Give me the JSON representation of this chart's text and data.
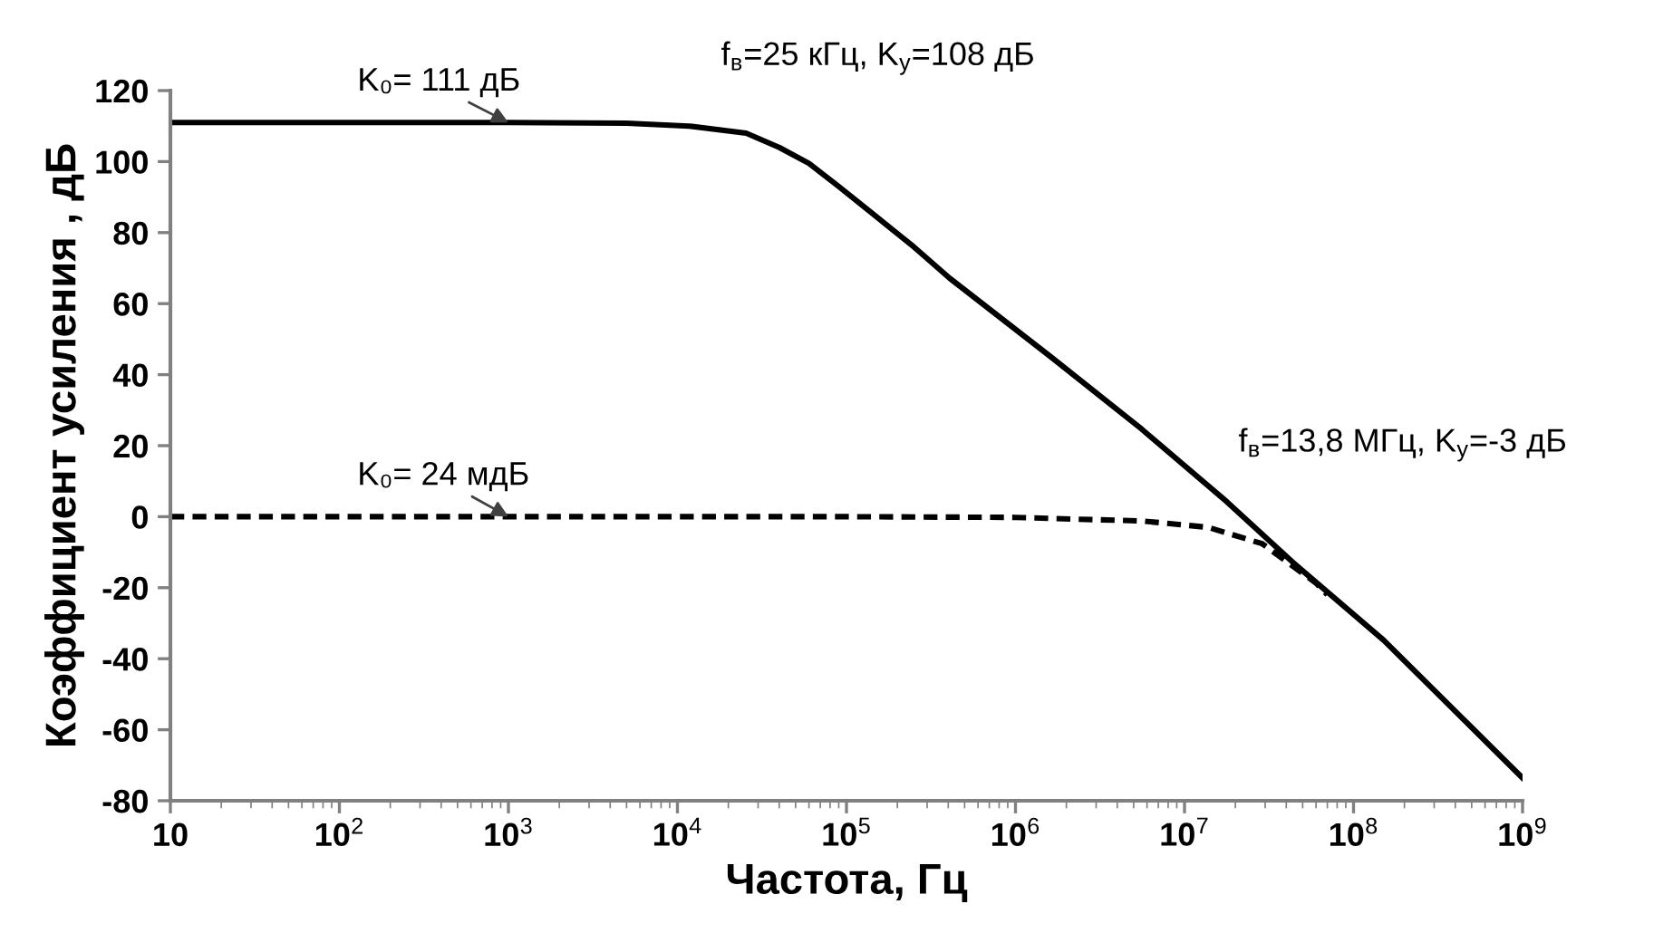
{
  "chart_data": {
    "type": "line",
    "xlabel": "Частота, Гц",
    "ylabel": "Коэффициент усиления , дБ",
    "log": "x",
    "grid": false,
    "marker": "none",
    "xlim": [
      10,
      1000000000
    ],
    "ylim": [
      -80,
      120
    ],
    "xticks": [
      10,
      {
        "value": 100,
        "label": "10$^{2}$"
      },
      {
        "value": 1000,
        "label": "10$^{3}$"
      },
      {
        "value": 10000,
        "label": "10$^{4}$"
      },
      {
        "value": 100000,
        "label": "10$^{5}$"
      },
      {
        "value": 1000000,
        "label": "10$^{6}$"
      },
      {
        "value": 10000000,
        "label": "10$^{7}$"
      },
      {
        "value": 100000000,
        "label": "10$^{8}$"
      },
      {
        "value": 1000000000,
        "label": "10$^{9}$"
      }
    ],
    "yticks": [
      -80,
      -60,
      -40,
      -20,
      0,
      20,
      40,
      60,
      80,
      100,
      120
    ],
    "series": [
      {
        "color": "#000000",
        "line_style": "solid",
        "x": [
          10,
          100,
          1000,
          5000,
          11700,
          25500,
          40000,
          60000,
          90000,
          138000,
          250000,
          407000,
          1620000,
          5600000,
          17800000,
          43600000,
          151000000,
          1000000000
        ],
        "values": [
          111,
          111,
          111,
          110.8,
          110,
          108,
          104,
          99.5,
          93,
          85.9,
          76,
          67.2,
          45,
          24.6,
          4.2,
          -12.8,
          -34.8,
          -73.6
        ]
      },
      {
        "color": "#000000",
        "line_style": "dashed",
        "x": [
          10,
          100,
          1000,
          100000,
          1000000,
          1620000,
          5600000,
          13800000,
          28800000,
          60000000,
          70000000
        ],
        "values": [
          0,
          0,
          0,
          0,
          -0.2,
          -0.5,
          -1.2,
          -3,
          -7.6,
          -18.7,
          -22
        ]
      }
    ],
    "annotations": [
      {
        "text": "K₀= 111 дБ",
        "x": 1000,
        "y": 111
      },
      {
        "text": "f$_{в}$=25 кГц, K$_{у}$=108 дБ",
        "x": 25500,
        "y": 108
      },
      {
        "text": "K₀= 24 мдБ",
        "x": 1000,
        "y": 0
      },
      {
        "text": "f$_{в}$=13,8 МГц, K$_{у}$=-3 дБ",
        "x": 13800000,
        "y": -3
      }
    ]
  }
}
